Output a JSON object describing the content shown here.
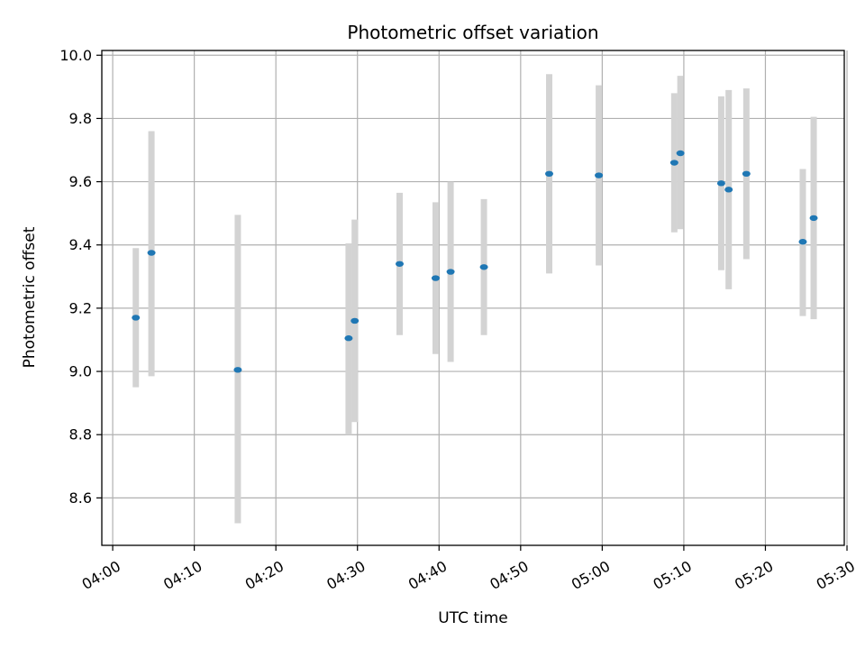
{
  "chart_data": {
    "type": "scatter",
    "title": "Photometric offset variation",
    "xlabel": "UTC time",
    "ylabel": "Photometric offset",
    "x_tick_labels": [
      "04:00",
      "04:10",
      "04:20",
      "04:30",
      "04:40",
      "04:50",
      "05:00",
      "05:10",
      "05:20",
      "05:30"
    ],
    "x_ticks": [
      "04:00",
      "04:10",
      "04:20",
      "04:30",
      "04:40",
      "04:50",
      "05:00",
      "05:10",
      "05:20",
      "05:30"
    ],
    "y_ticks": [
      8.6,
      8.8,
      9.0,
      9.2,
      9.4,
      9.6,
      9.8,
      10.0
    ],
    "y_tick_labels": [
      "8.6",
      "8.8",
      "9.0",
      "9.2",
      "9.4",
      "9.6",
      "9.8",
      "10.0"
    ],
    "xlim": [
      "03:58:40",
      "05:29:40"
    ],
    "ylim": [
      8.45,
      10.015
    ],
    "grid": true,
    "colors": {
      "marker": "#1f77b4",
      "errorbar": "#d3d3d3",
      "grid": "#b0b0b0"
    },
    "points": [
      {
        "x": "04:02:50",
        "y": 9.17,
        "low": 8.95,
        "high": 9.39
      },
      {
        "x": "04:04:45",
        "y": 9.375,
        "low": 8.985,
        "high": 9.76
      },
      {
        "x": "04:15:20",
        "y": 9.005,
        "low": 8.52,
        "high": 9.495
      },
      {
        "x": "04:28:55",
        "y": 9.105,
        "low": 8.8,
        "high": 9.405
      },
      {
        "x": "04:29:40",
        "y": 9.16,
        "low": 8.84,
        "high": 9.48
      },
      {
        "x": "04:35:10",
        "y": 9.34,
        "low": 9.115,
        "high": 9.565
      },
      {
        "x": "04:39:35",
        "y": 9.295,
        "low": 9.055,
        "high": 9.535
      },
      {
        "x": "04:41:25",
        "y": 9.315,
        "low": 9.03,
        "high": 9.6
      },
      {
        "x": "04:45:30",
        "y": 9.33,
        "low": 9.115,
        "high": 9.545
      },
      {
        "x": "04:53:30",
        "y": 9.625,
        "low": 9.31,
        "high": 9.94
      },
      {
        "x": "04:59:35",
        "y": 9.62,
        "low": 9.335,
        "high": 9.905
      },
      {
        "x": "05:08:50",
        "y": 9.66,
        "low": 9.44,
        "high": 9.88
      },
      {
        "x": "05:09:35",
        "y": 9.69,
        "low": 9.45,
        "high": 9.935
      },
      {
        "x": "05:14:35",
        "y": 9.595,
        "low": 9.32,
        "high": 9.87
      },
      {
        "x": "05:15:30",
        "y": 9.575,
        "low": 9.26,
        "high": 9.89
      },
      {
        "x": "05:17:40",
        "y": 9.625,
        "low": 9.355,
        "high": 9.895
      },
      {
        "x": "05:24:35",
        "y": 9.41,
        "low": 9.175,
        "high": 9.64
      },
      {
        "x": "05:25:55",
        "y": 9.485,
        "low": 9.165,
        "high": 9.805
      }
    ]
  }
}
